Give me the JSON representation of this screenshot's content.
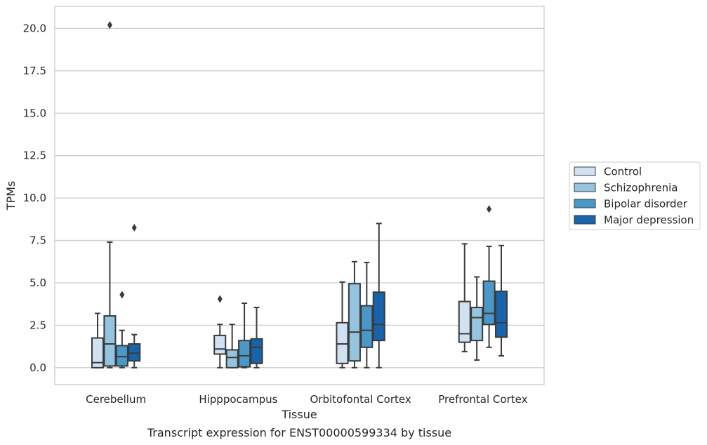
{
  "chart_data": {
    "type": "boxplot",
    "title": "",
    "caption": "Transcript expression for ENST00000599334 by tissue",
    "xlabel": "Tissue",
    "ylabel": "TPMs",
    "ylim": [
      -1.0,
      21.3
    ],
    "yticks": [
      0.0,
      2.5,
      5.0,
      7.5,
      10.0,
      12.5,
      15.0,
      17.5,
      20.0
    ],
    "ytick_labels": [
      "0.0",
      "2.5",
      "5.0",
      "7.5",
      "10.0",
      "12.5",
      "15.0",
      "17.5",
      "20.0"
    ],
    "grid": "horizontal",
    "legend_position": "right",
    "categories": [
      "Cerebellum",
      "Hipppocampus",
      "Orbitofontal Cortex",
      "Prefrontal Cortex"
    ],
    "series": [
      {
        "name": "Control",
        "color": "#d0e1f2",
        "boxes": [
          {
            "whislo": 0.0,
            "q1": 0.0,
            "med": 0.3,
            "q3": 1.75,
            "whishi": 3.2,
            "fliers": []
          },
          {
            "whislo": 0.0,
            "q1": 0.8,
            "med": 1.1,
            "q3": 1.9,
            "whishi": 2.55,
            "fliers": [
              4.05
            ]
          },
          {
            "whislo": 0.0,
            "q1": 0.25,
            "med": 1.4,
            "q3": 2.65,
            "whishi": 5.05,
            "fliers": []
          },
          {
            "whislo": 0.95,
            "q1": 1.5,
            "med": 2.0,
            "q3": 3.9,
            "whishi": 7.3,
            "fliers": []
          }
        ]
      },
      {
        "name": "Schizophrenia",
        "color": "#94c4df",
        "boxes": [
          {
            "whislo": 0.0,
            "q1": 0.1,
            "med": 1.4,
            "q3": 3.05,
            "whishi": 7.4,
            "fliers": [
              20.2
            ]
          },
          {
            "whislo": 0.0,
            "q1": 0.0,
            "med": 0.6,
            "q3": 1.05,
            "whishi": 2.55,
            "fliers": []
          },
          {
            "whislo": 0.0,
            "q1": 0.4,
            "med": 2.1,
            "q3": 4.95,
            "whishi": 6.25,
            "fliers": []
          },
          {
            "whislo": 0.45,
            "q1": 1.6,
            "med": 2.95,
            "q3": 3.55,
            "whishi": 5.35,
            "fliers": []
          }
        ]
      },
      {
        "name": "Bipolar disorder",
        "color": "#4a98c9",
        "boxes": [
          {
            "whislo": 0.0,
            "q1": 0.1,
            "med": 0.65,
            "q3": 1.3,
            "whishi": 2.2,
            "fliers": [
              4.3
            ]
          },
          {
            "whislo": 0.0,
            "q1": 0.05,
            "med": 0.7,
            "q3": 1.6,
            "whishi": 3.8,
            "fliers": []
          },
          {
            "whislo": 0.0,
            "q1": 1.2,
            "med": 2.2,
            "q3": 3.65,
            "whishi": 6.2,
            "fliers": []
          },
          {
            "whislo": 1.2,
            "q1": 2.55,
            "med": 3.2,
            "q3": 5.1,
            "whishi": 7.15,
            "fliers": [
              9.35
            ]
          }
        ]
      },
      {
        "name": "Major depression",
        "color": "#1764ab",
        "boxes": [
          {
            "whislo": 0.0,
            "q1": 0.4,
            "med": 0.85,
            "q3": 1.4,
            "whishi": 1.95,
            "fliers": [
              8.25
            ]
          },
          {
            "whislo": 0.0,
            "q1": 0.25,
            "med": 1.2,
            "q3": 1.7,
            "whishi": 3.55,
            "fliers": []
          },
          {
            "whislo": 0.0,
            "q1": 1.6,
            "med": 2.55,
            "q3": 4.45,
            "whishi": 8.5,
            "fliers": []
          },
          {
            "whislo": 0.7,
            "q1": 1.8,
            "med": 2.65,
            "q3": 4.5,
            "whishi": 7.2,
            "fliers": []
          }
        ]
      }
    ]
  }
}
